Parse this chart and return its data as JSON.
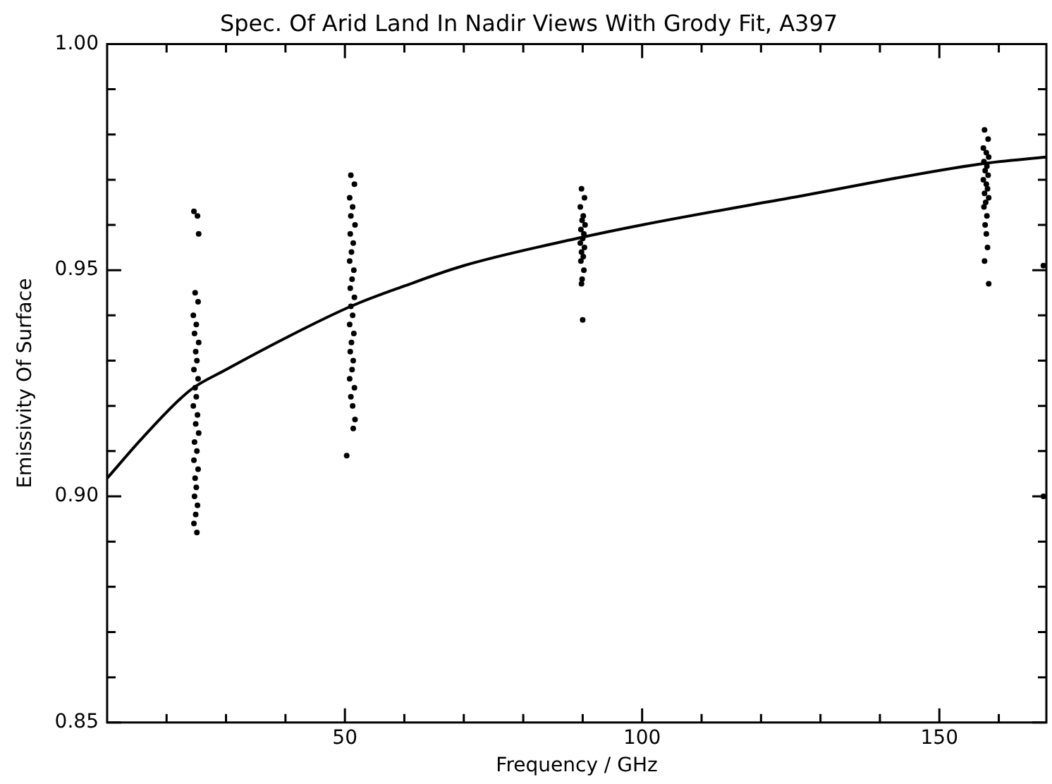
{
  "chart_data": {
    "type": "scatter",
    "title": "Spec. Of Arid Land In Nadir Views With Grody Fit, A397",
    "xlabel": "Frequency / GHz",
    "ylabel": "Emissivity Of Surface",
    "xlim": [
      10,
      168
    ],
    "xticks": [
      {
        "value": 20,
        "label": null
      },
      {
        "value": 30,
        "label": null
      },
      {
        "value": 40,
        "label": null
      },
      50,
      {
        "value": 60,
        "label": null
      },
      {
        "value": 70,
        "label": null
      },
      {
        "value": 80,
        "label": null
      },
      {
        "value": 90,
        "label": null
      },
      100,
      {
        "value": 110,
        "label": null
      },
      {
        "value": 120,
        "label": null
      },
      {
        "value": 130,
        "label": null
      },
      {
        "value": 140,
        "label": null
      },
      150,
      {
        "value": 160,
        "label": null
      }
    ],
    "ylim": [
      0.85,
      1.0
    ],
    "yticks": [
      {
        "value": 0.85,
        "label": "0.85"
      },
      {
        "value": 0.86,
        "label": null
      },
      {
        "value": 0.87,
        "label": null
      },
      {
        "value": 0.88,
        "label": null
      },
      {
        "value": 0.89,
        "label": null
      },
      {
        "value": 0.9,
        "label": "0.90"
      },
      {
        "value": 0.91,
        "label": null
      },
      {
        "value": 0.92,
        "label": null
      },
      {
        "value": 0.93,
        "label": null
      },
      {
        "value": 0.94,
        "label": null
      },
      {
        "value": 0.95,
        "label": "0.95"
      },
      {
        "value": 0.96,
        "label": null
      },
      {
        "value": 0.97,
        "label": null
      },
      {
        "value": 0.98,
        "label": null
      },
      {
        "value": 0.99,
        "label": null
      },
      {
        "value": 1.0,
        "label": "1.00"
      }
    ],
    "grid": false,
    "legend": false,
    "marker": "circle",
    "series": [
      {
        "color": "#000000",
        "x": [
          24.6,
          25.2,
          25.4,
          24.8,
          25.3,
          24.5,
          25.0,
          24.7,
          25.4,
          24.9,
          25.1,
          24.6,
          25.3,
          24.8,
          25.0,
          24.5,
          25.2,
          24.9,
          25.4,
          24.7,
          25.1,
          24.6,
          25.3,
          24.8,
          25.0,
          24.7,
          25.2,
          24.9,
          24.6,
          25.1
        ],
        "values": [
          0.963,
          0.962,
          0.958,
          0.945,
          0.943,
          0.94,
          0.938,
          0.936,
          0.934,
          0.932,
          0.93,
          0.928,
          0.926,
          0.924,
          0.922,
          0.92,
          0.918,
          0.916,
          0.914,
          0.912,
          0.91,
          0.908,
          0.906,
          0.904,
          0.902,
          0.9,
          0.898,
          0.896,
          0.894,
          0.892
        ]
      },
      {
        "color": "#000000",
        "x": [
          51.0,
          51.6,
          50.8,
          51.3,
          51.0,
          51.7,
          50.9,
          51.4,
          51.1,
          50.8,
          51.5,
          51.2,
          50.9,
          51.6,
          51.0,
          51.3,
          50.8,
          51.5,
          51.1,
          50.9,
          51.4,
          51.2,
          50.8,
          51.6,
          51.0,
          51.3,
          51.7,
          51.4,
          50.3
        ],
        "values": [
          0.971,
          0.969,
          0.966,
          0.964,
          0.962,
          0.96,
          0.958,
          0.956,
          0.954,
          0.952,
          0.95,
          0.948,
          0.946,
          0.944,
          0.942,
          0.94,
          0.938,
          0.936,
          0.934,
          0.932,
          0.93,
          0.928,
          0.926,
          0.924,
          0.922,
          0.92,
          0.917,
          0.915,
          0.909
        ]
      },
      {
        "color": "#000000",
        "x": [
          89.8,
          90.3,
          89.6,
          90.1,
          89.9,
          90.4,
          89.7,
          90.2,
          90.0,
          89.6,
          90.3,
          89.8,
          90.1,
          89.7,
          90.2,
          89.9,
          89.8,
          90.0
        ],
        "values": [
          0.968,
          0.966,
          0.964,
          0.962,
          0.961,
          0.96,
          0.959,
          0.958,
          0.957,
          0.956,
          0.955,
          0.954,
          0.953,
          0.952,
          0.95,
          0.948,
          0.947,
          0.939
        ]
      },
      {
        "color": "#000000",
        "x": [
          157.6,
          158.2,
          157.4,
          157.9,
          158.3,
          157.5,
          158.0,
          157.7,
          158.2,
          157.4,
          157.9,
          158.1,
          157.6,
          158.3,
          157.8,
          157.5,
          158.0,
          157.7,
          157.9,
          158.1,
          157.6,
          158.3,
          167.5,
          167.5
        ],
        "values": [
          0.981,
          0.979,
          0.977,
          0.976,
          0.975,
          0.974,
          0.973,
          0.972,
          0.971,
          0.97,
          0.969,
          0.968,
          0.967,
          0.966,
          0.965,
          0.964,
          0.962,
          0.96,
          0.958,
          0.955,
          0.952,
          0.947,
          0.951,
          0.9
        ]
      },
      {
        "type": "line",
        "color": "#000000",
        "marker": "none",
        "x": [
          10,
          16,
          24,
          30,
          40,
          51,
          60,
          70,
          89,
          100,
          125,
          157,
          168
        ],
        "values": [
          0.904,
          0.913,
          0.9235,
          0.928,
          0.935,
          0.942,
          0.9465,
          0.951,
          0.957,
          0.96,
          0.966,
          0.9735,
          0.975
        ]
      }
    ]
  }
}
